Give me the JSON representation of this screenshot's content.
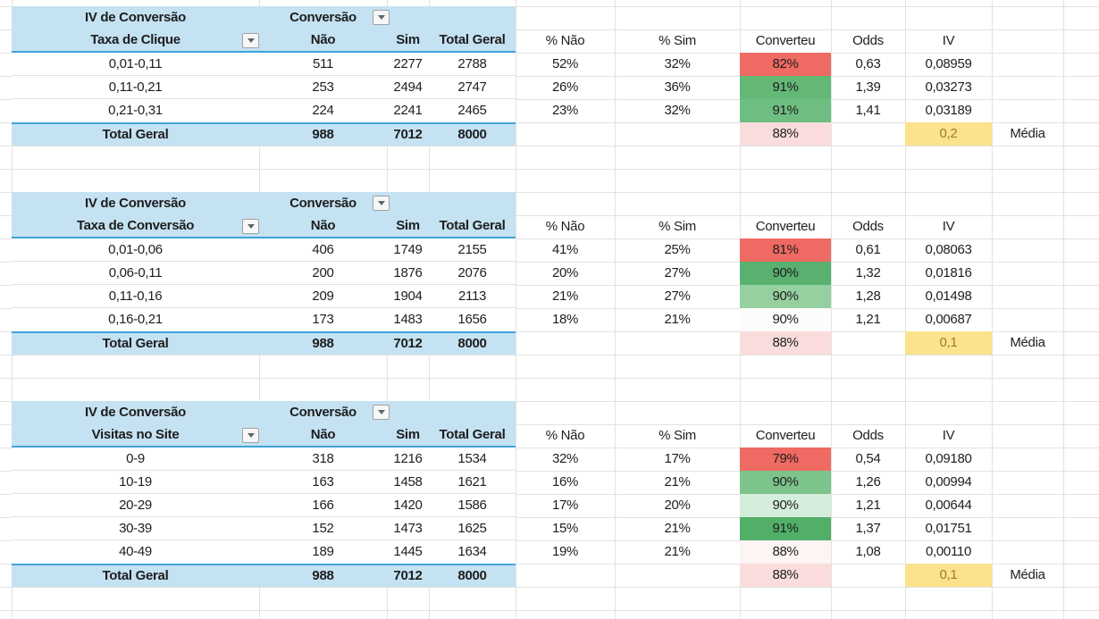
{
  "colors": {
    "header_fill": "#C4E2F2",
    "rule_blue": "#3FA3DA",
    "gridline": "#E2E2E2",
    "text": "#1E1E1E",
    "red_fill": "#EF6A62",
    "total_converteu_fill": "#FBDCDC",
    "iv_total_fill": "#FCE28C",
    "iv_total_text": "#9C7C2D"
  },
  "tables": [
    {
      "id": "taxa-de-clique",
      "title": "IV de Conversão",
      "filter_field": "Conversão",
      "row_field": "Taxa de Clique",
      "headers": {
        "nao": "Não",
        "sim": "Sim",
        "total": "Total Geral"
      },
      "analysis_headers": [
        "% Não",
        "% Sim",
        "Converteu",
        "Odds",
        "IV"
      ],
      "rows": [
        {
          "label": "0,01-0,11",
          "nao": "511",
          "sim": "2277",
          "total": "2788",
          "pct_nao": "52%",
          "pct_sim": "32%",
          "converteu": "82%",
          "fill": "#EF6A62",
          "odds": "0,63",
          "iv": "0,08959"
        },
        {
          "label": "0,11-0,21",
          "nao": "253",
          "sim": "2494",
          "total": "2747",
          "pct_nao": "26%",
          "pct_sim": "36%",
          "converteu": "91%",
          "fill": "#63B876",
          "odds": "1,39",
          "iv": "0,03273"
        },
        {
          "label": "0,21-0,31",
          "nao": "224",
          "sim": "2241",
          "total": "2465",
          "pct_nao": "23%",
          "pct_sim": "32%",
          "converteu": "91%",
          "fill": "#6FBE81",
          "odds": "1,41",
          "iv": "0,03189"
        }
      ],
      "total": {
        "label": "Total Geral",
        "nao": "988",
        "sim": "7012",
        "total": "8000",
        "converteu": "88%",
        "converteu_fill": "#FBDCDC",
        "iv": "0,2",
        "iv_fill": "#FCE28C",
        "note": "Média"
      }
    },
    {
      "id": "taxa-de-conversao",
      "title": "IV de Conversão",
      "filter_field": "Conversão",
      "row_field": "Taxa de Conversão",
      "headers": {
        "nao": "Não",
        "sim": "Sim",
        "total": "Total Geral"
      },
      "analysis_headers": [
        "% Não",
        "% Sim",
        "Converteu",
        "Odds",
        "IV"
      ],
      "rows": [
        {
          "label": "0,01-0,06",
          "nao": "406",
          "sim": "1749",
          "total": "2155",
          "pct_nao": "41%",
          "pct_sim": "25%",
          "converteu": "81%",
          "fill": "#EF6A62",
          "odds": "0,61",
          "iv": "0,08063"
        },
        {
          "label": "0,06-0,11",
          "nao": "200",
          "sim": "1876",
          "total": "2076",
          "pct_nao": "20%",
          "pct_sim": "27%",
          "converteu": "90%",
          "fill": "#59B06F",
          "odds": "1,32",
          "iv": "0,01816"
        },
        {
          "label": "0,11-0,16",
          "nao": "209",
          "sim": "1904",
          "total": "2113",
          "pct_nao": "21%",
          "pct_sim": "27%",
          "converteu": "90%",
          "fill": "#96D0A0",
          "odds": "1,28",
          "iv": "0,01498"
        },
        {
          "label": "0,16-0,21",
          "nao": "173",
          "sim": "1483",
          "total": "1656",
          "pct_nao": "18%",
          "pct_sim": "21%",
          "converteu": "90%",
          "fill": "#FAFDFA",
          "odds": "1,21",
          "iv": "0,00687"
        }
      ],
      "total": {
        "label": "Total Geral",
        "nao": "988",
        "sim": "7012",
        "total": "8000",
        "converteu": "88%",
        "converteu_fill": "#FBDCDC",
        "iv": "0,1",
        "iv_fill": "#FCE28C",
        "note": "Média"
      }
    },
    {
      "id": "visitas-no-site",
      "title": "IV de Conversão",
      "filter_field": "Conversão",
      "row_field": "Visitas no Site",
      "headers": {
        "nao": "Não",
        "sim": "Sim",
        "total": "Total Geral"
      },
      "analysis_headers": [
        "% Não",
        "% Sim",
        "Converteu",
        "Odds",
        "IV"
      ],
      "rows": [
        {
          "label": "0-9",
          "nao": "318",
          "sim": "1216",
          "total": "1534",
          "pct_nao": "32%",
          "pct_sim": "17%",
          "converteu": "79%",
          "fill": "#EF6A62",
          "odds": "0,54",
          "iv": "0,09180"
        },
        {
          "label": "10-19",
          "nao": "163",
          "sim": "1458",
          "total": "1621",
          "pct_nao": "16%",
          "pct_sim": "21%",
          "converteu": "90%",
          "fill": "#7CC48B",
          "odds": "1,26",
          "iv": "0,00994"
        },
        {
          "label": "20-29",
          "nao": "166",
          "sim": "1420",
          "total": "1586",
          "pct_nao": "17%",
          "pct_sim": "20%",
          "converteu": "90%",
          "fill": "#D5EEDB",
          "odds": "1,21",
          "iv": "0,00644"
        },
        {
          "label": "30-39",
          "nao": "152",
          "sim": "1473",
          "total": "1625",
          "pct_nao": "15%",
          "pct_sim": "21%",
          "converteu": "91%",
          "fill": "#52AF68",
          "odds": "1,37",
          "iv": "0,01751"
        },
        {
          "label": "40-49",
          "nao": "189",
          "sim": "1445",
          "total": "1634",
          "pct_nao": "19%",
          "pct_sim": "21%",
          "converteu": "88%",
          "fill": "#FDF4F4",
          "odds": "1,08",
          "iv": "0,00110"
        }
      ],
      "total": {
        "label": "Total Geral",
        "nao": "988",
        "sim": "7012",
        "total": "8000",
        "converteu": "88%",
        "converteu_fill": "#FBDCDC",
        "iv": "0,1",
        "iv_fill": "#FCE28C",
        "note": "Média"
      }
    }
  ]
}
